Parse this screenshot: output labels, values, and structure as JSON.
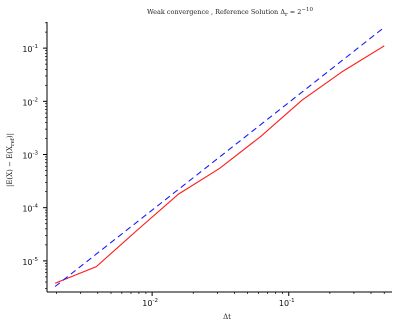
{
  "chart_data": {
    "type": "line",
    "title": "Weak convergence , Reference Solution  Δ",
    "title_sub": "r",
    "title_eq": " = 2",
    "title_exp": "−10",
    "xlabel": "Δt",
    "ylabel": "|E(X) − E(X",
    "ylabel_sub": "ref",
    "ylabel_end": ")|",
    "xscale": "log",
    "yscale": "log",
    "xlim": [
      0.0017,
      0.57
    ],
    "ylim": [
      2.6e-06,
      0.31
    ],
    "x_ticks": [
      {
        "value": 0.01,
        "base": "10",
        "exp": "-2"
      },
      {
        "value": 0.1,
        "base": "10",
        "exp": "-1"
      }
    ],
    "y_ticks": [
      {
        "value": 1e-05,
        "base": "10",
        "exp": "-5"
      },
      {
        "value": 0.0001,
        "base": "10",
        "exp": "-4"
      },
      {
        "value": 0.001,
        "base": "10",
        "exp": "-3"
      },
      {
        "value": 0.01,
        "base": "10",
        "exp": "-2"
      },
      {
        "value": 0.1,
        "base": "10",
        "exp": "-1"
      }
    ],
    "grid": false,
    "legend": "none",
    "series": [
      {
        "color": "#ff1a1a",
        "dash": "solid",
        "x": [
          0.00195,
          0.0039,
          0.0078,
          0.0156,
          0.03125,
          0.0625,
          0.125,
          0.25,
          0.5
        ],
        "y": [
          3.8e-06,
          7.8e-06,
          3.8e-05,
          0.00018,
          0.00055,
          0.0022,
          0.0105,
          0.037,
          0.11
        ]
      },
      {
        "color": "#1a1aff",
        "dash": "dashed",
        "x": [
          0.00195,
          0.5
        ],
        "y": [
          3.3e-06,
          0.245
        ]
      }
    ]
  }
}
